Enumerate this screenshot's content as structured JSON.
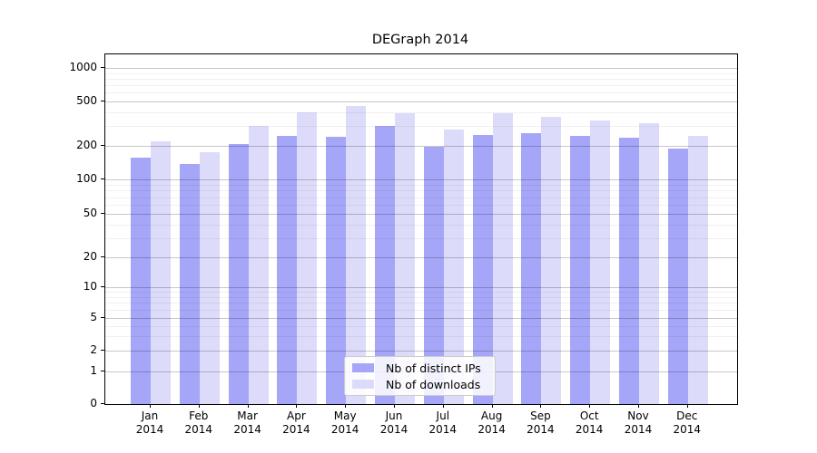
{
  "chart_data": {
    "type": "bar",
    "title": "DEGraph 2014",
    "categories": [
      "Jan",
      "Feb",
      "Mar",
      "Apr",
      "May",
      "Jun",
      "Jul",
      "Aug",
      "Sep",
      "Oct",
      "Nov",
      "Dec"
    ],
    "category_year": "2014",
    "series": [
      {
        "name": "Nb of distinct IPs",
        "color": "#a6a6f8",
        "values": [
          157,
          137,
          207,
          245,
          240,
          300,
          196,
          250,
          258,
          245,
          236,
          189
        ]
      },
      {
        "name": "Nb of downloads",
        "color": "#dcdcfa",
        "values": [
          218,
          175,
          300,
          400,
          455,
          390,
          278,
          392,
          364,
          337,
          319,
          245
        ]
      }
    ],
    "xlabel": "",
    "ylabel": "",
    "yscale": "symlog",
    "ylim": [
      0,
      1300
    ],
    "y_tick_values": [
      0,
      1,
      2,
      5,
      10,
      20,
      50,
      100,
      200,
      500,
      1000
    ],
    "y_tick_labels": [
      "0",
      "1",
      "2",
      "5",
      "10",
      "20",
      "50",
      "100",
      "200",
      "500",
      "1000"
    ],
    "y_minor_gridlines": [
      3,
      4,
      6,
      7,
      8,
      9,
      30,
      40,
      60,
      70,
      80,
      90,
      300,
      400,
      600,
      700,
      800,
      900
    ],
    "grid": true,
    "legend": {
      "position": "lower center",
      "items": [
        "Nb of distinct IPs",
        "Nb of downloads"
      ]
    }
  }
}
